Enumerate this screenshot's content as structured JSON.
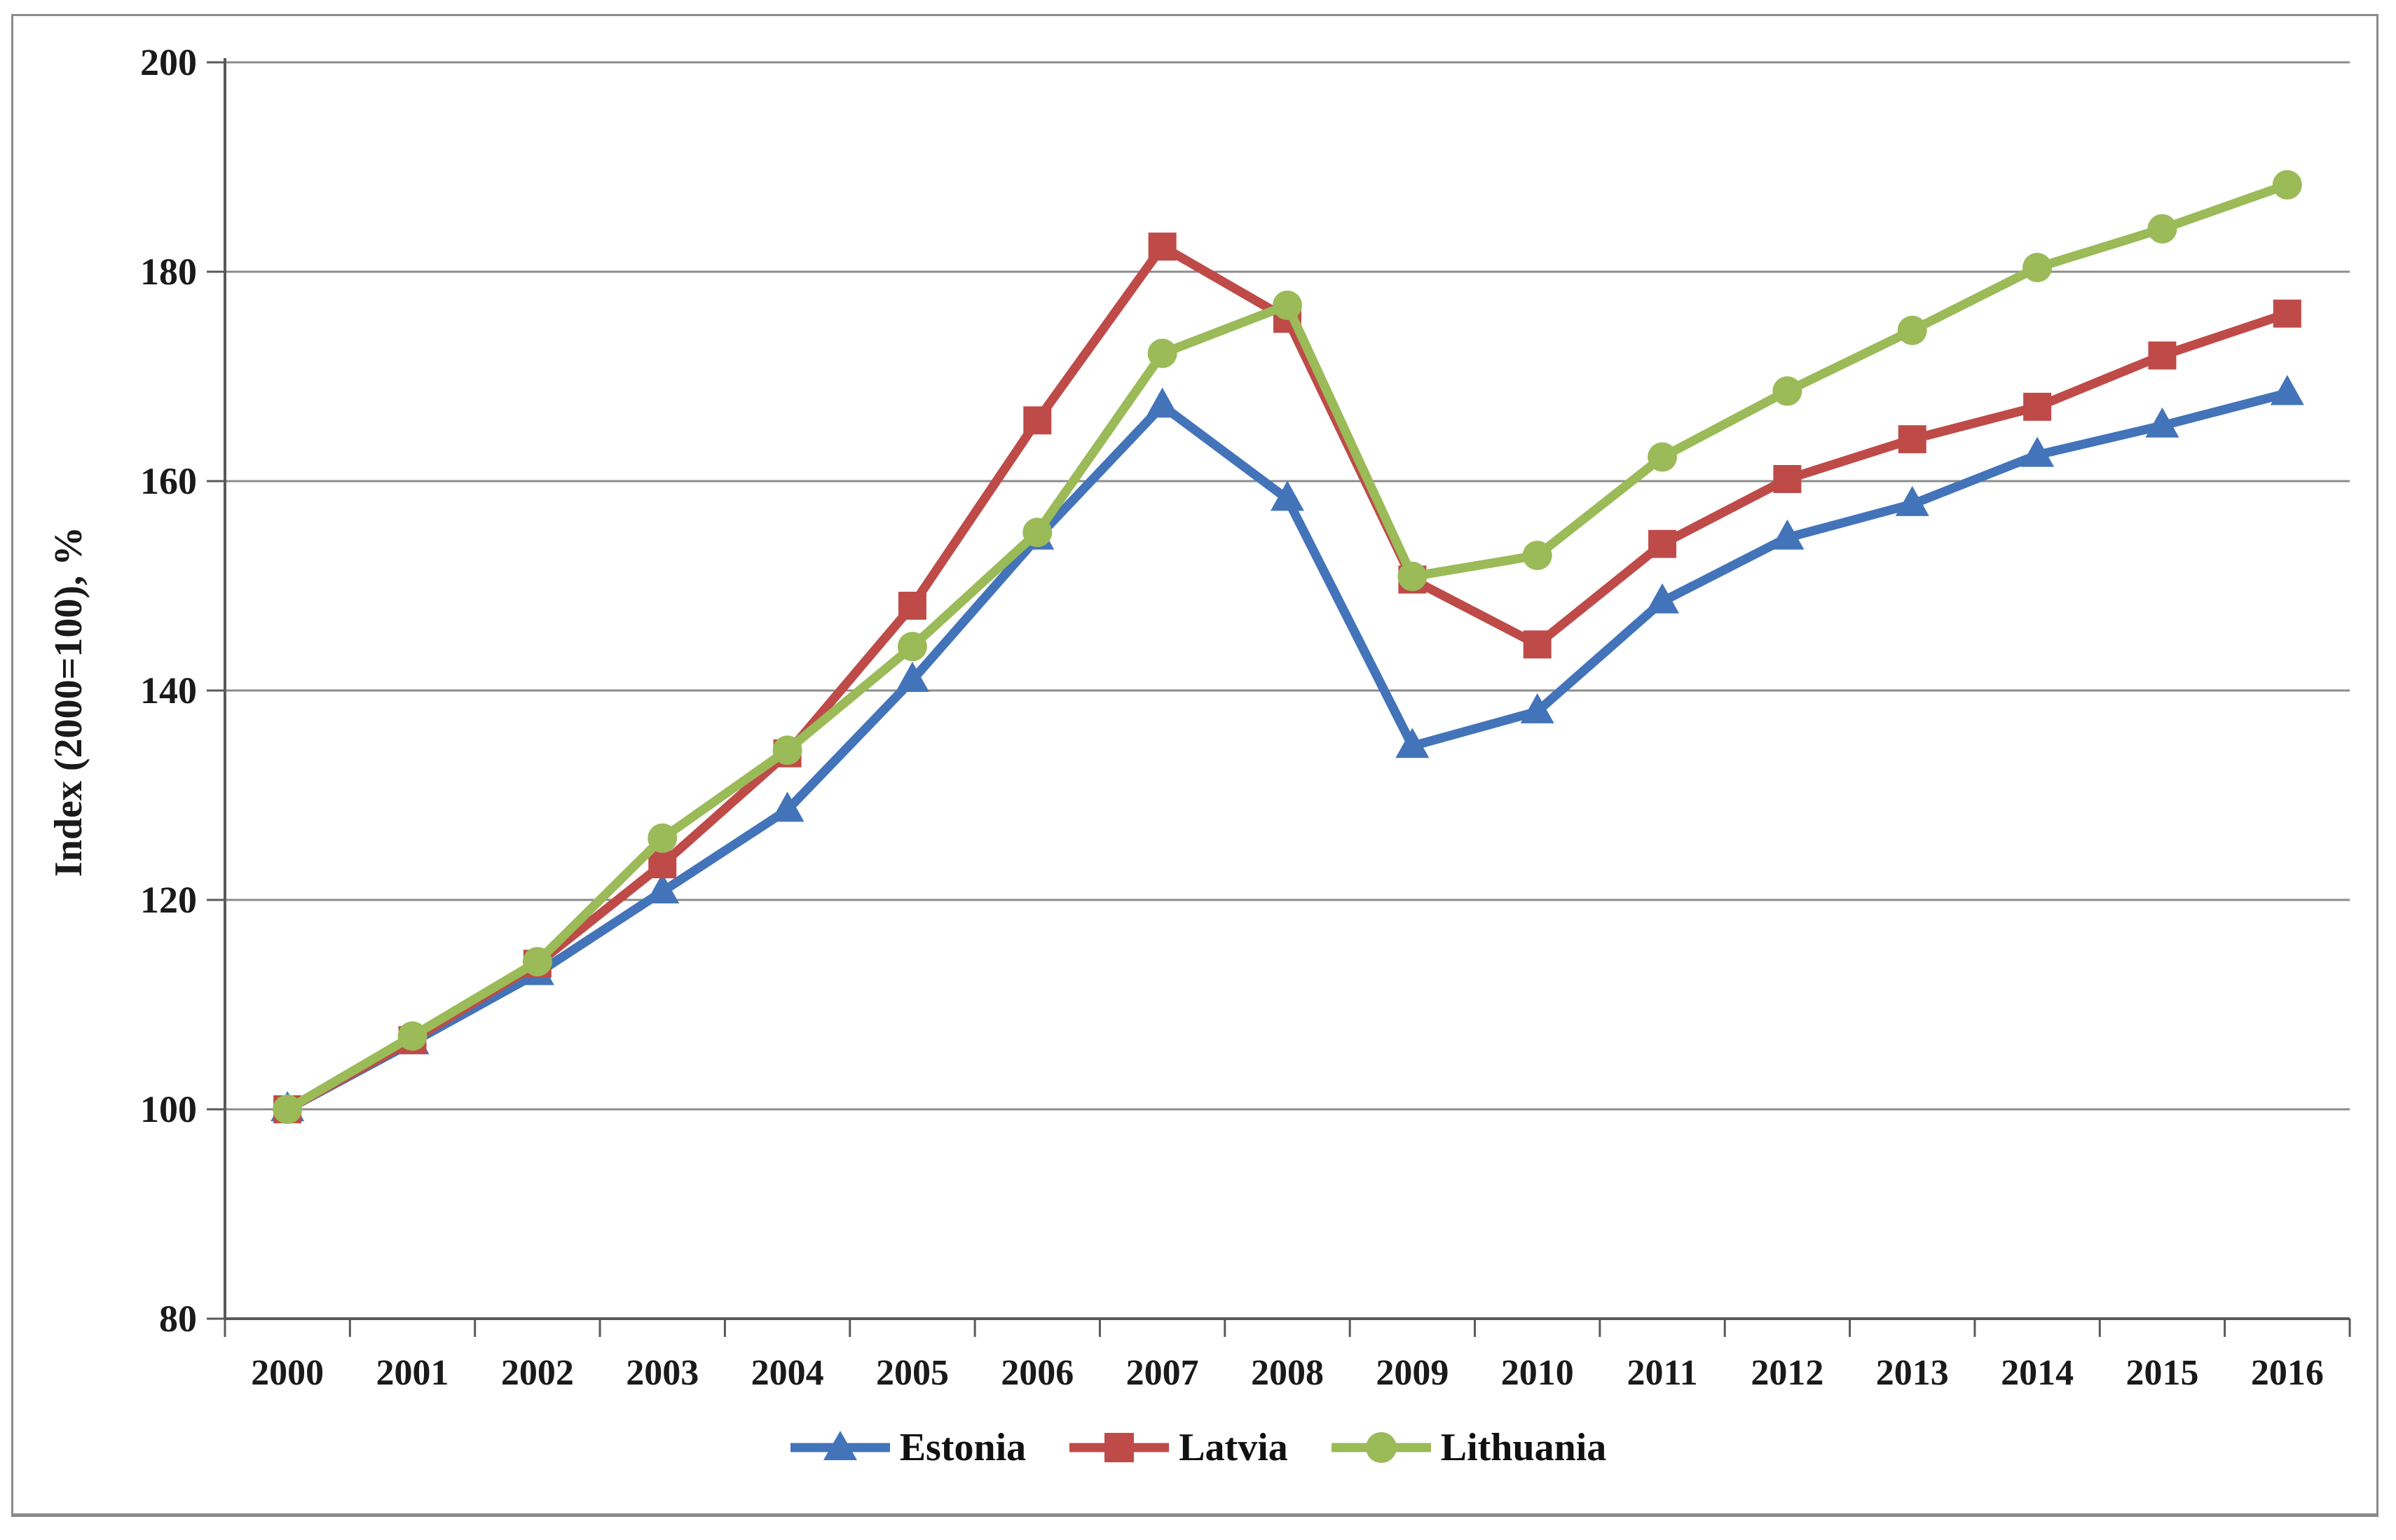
{
  "figure": {
    "background": "#ffffff",
    "border_color": "#8a8a8a"
  },
  "axis": {
    "y_title": "Index (2000=100), %",
    "text_color": "#1a1a1a",
    "gridline_color": "#8c8c8c",
    "axis_line_color": "#595959"
  },
  "legend": {
    "items": [
      {
        "label": "Estonia",
        "marker": "triangle",
        "color": "#4374B9"
      },
      {
        "label": "Latvia",
        "marker": "square",
        "color": "#BE4B48"
      },
      {
        "label": "Lithuania",
        "marker": "circle",
        "color": "#9BBA58"
      }
    ]
  },
  "chart_data": {
    "type": "line",
    "title": "",
    "xlabel": "",
    "ylabel": "Index (2000=100), %",
    "ylim": [
      80,
      200
    ],
    "y_ticks": [
      80,
      100,
      120,
      140,
      160,
      180,
      200
    ],
    "grid": true,
    "legend_position": "bottom-center",
    "categories": [
      2000,
      2001,
      2002,
      2003,
      2004,
      2005,
      2006,
      2007,
      2008,
      2009,
      2010,
      2011,
      2012,
      2013,
      2014,
      2015,
      2016
    ],
    "series": [
      {
        "name": "Estonia",
        "color": "#4374B9",
        "marker": "triangle",
        "values": [
          100,
          106.4,
          113.0,
          120.8,
          128.6,
          141.0,
          154.6,
          167.2,
          158.3,
          134.7,
          138.0,
          148.5,
          154.6,
          157.8,
          162.5,
          165.3,
          168.4
        ]
      },
      {
        "name": "Latvia",
        "color": "#BE4B48",
        "marker": "square",
        "values": [
          100,
          106.6,
          113.9,
          123.4,
          134.0,
          148.1,
          165.8,
          182.4,
          175.5,
          150.6,
          144.4,
          154.0,
          160.2,
          164.0,
          167.1,
          172.0,
          176.0
        ]
      },
      {
        "name": "Lithuania",
        "color": "#9BBA58",
        "marker": "circle",
        "values": [
          100,
          107.0,
          114.1,
          125.9,
          134.3,
          144.2,
          155.1,
          172.2,
          176.8,
          150.9,
          152.9,
          162.3,
          168.6,
          174.4,
          180.4,
          184.1,
          188.3
        ]
      }
    ]
  }
}
